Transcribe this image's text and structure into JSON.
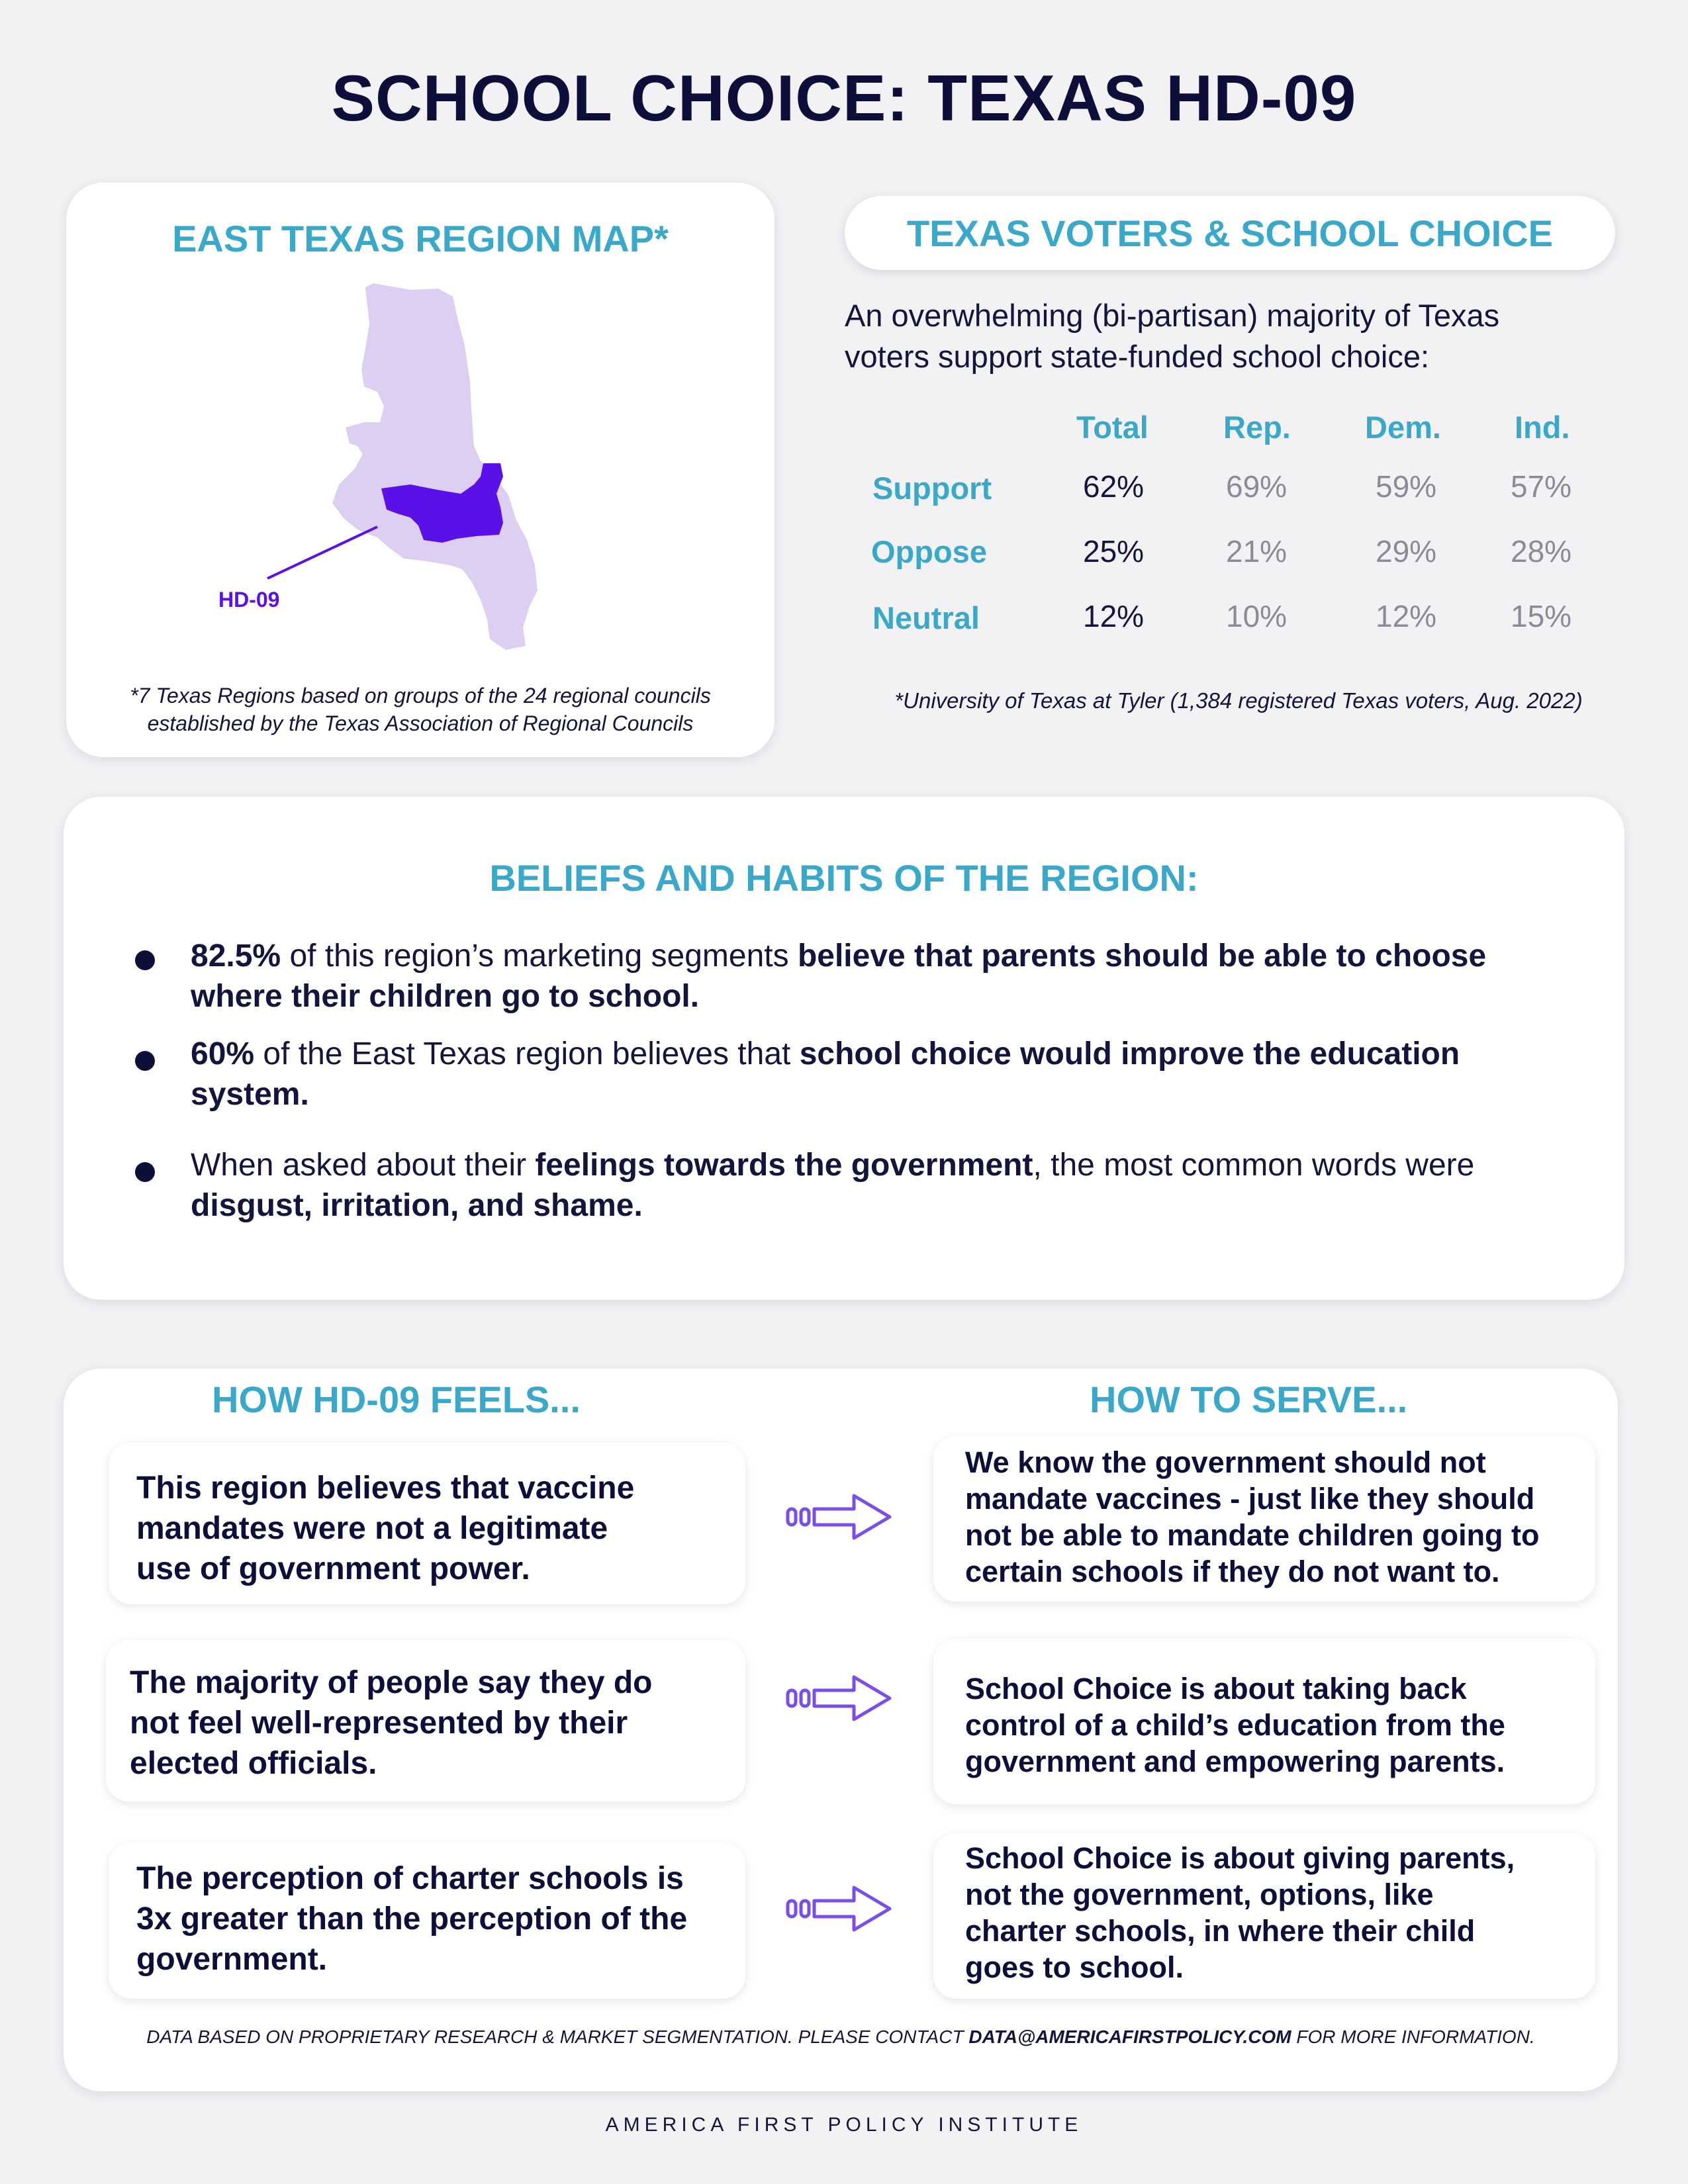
{
  "title": "SCHOOL CHOICE: TEXAS HD-09",
  "map": {
    "title": "EAST TEXAS REGION MAP*",
    "district_label": "HD-09",
    "footnote_line1": "*7 Texas Regions based on groups of the 24 regional councils",
    "footnote_line2": "established by the Texas Association of Regional Councils",
    "colors": {
      "region": "#dccff2",
      "district": "#5a10e6",
      "label": "#5a10e6"
    }
  },
  "voters": {
    "title": "TEXAS VOTERS & SCHOOL CHOICE",
    "intro_line1": "An overwhelming (bi-partisan) majority of Texas",
    "intro_line2": "voters support state-funded school choice:",
    "columns": [
      "Total",
      "Rep.",
      "Dem.",
      "Ind."
    ],
    "rows": [
      {
        "label": "Support",
        "values": [
          "62%",
          "69%",
          "59%",
          "57%"
        ]
      },
      {
        "label": "Oppose",
        "values": [
          "25%",
          "21%",
          "29%",
          "28%"
        ]
      },
      {
        "label": "Neutral",
        "values": [
          "12%",
          "10%",
          "12%",
          "15%"
        ]
      }
    ],
    "footnote": "*University of Texas at Tyler (1,384 registered Texas voters, Aug. 2022)"
  },
  "beliefs": {
    "title": "BELIEFS AND HABITS OF THE REGION:",
    "items": [
      {
        "bold1": "82.5%",
        "text1": " of this region’s marketing segments ",
        "bold2": "believe that parents should be able to choose where their children go to school."
      },
      {
        "bold1": "60%",
        "text1": " of the East Texas region believes that ",
        "bold2": "school choice would improve the education system."
      },
      {
        "text0": "When asked about their ",
        "bold1": "feelings towards the government",
        "text1": ", the most common words were ",
        "bold2": "disgust, irritation, and shame."
      }
    ]
  },
  "feels_serve": {
    "feels_title": "HOW HD-09 FEELS...",
    "serve_title": "HOW TO SERVE...",
    "pairs": [
      {
        "feel": [
          "This region believes that vaccine",
          "mandates were not a legitimate",
          "use of government power."
        ],
        "serve": [
          "We know the government should not",
          "mandate vaccines - just like they should",
          "not be able to mandate children going to",
          "certain schools if they do not want to."
        ]
      },
      {
        "feel": [
          "The majority of people say they do",
          "not feel well-represented by their",
          "elected officials."
        ],
        "serve": [
          "School Choice is about taking back",
          "control of a child’s education from the",
          "government and empowering parents."
        ]
      },
      {
        "feel": [
          "The perception of charter schools is",
          "3x greater than the perception of the",
          "government."
        ],
        "serve": [
          "School Choice is about giving parents,",
          "not the government, options, like",
          "charter schools, in where their child",
          "goes to school."
        ]
      }
    ],
    "arrow_icon": "arrow-right-icon",
    "footer_text1": "DATA BASED ON PROPRIETARY RESEARCH & MARKET SEGMENTATION. PLEASE CONTACT ",
    "footer_email": "DATA@AMERICAFIRSTPOLICY.COM",
    "footer_text2": " FOR MORE INFORMATION."
  },
  "organization": "AMERICA FIRST POLICY INSTITUTE",
  "theme": {
    "teal": "#3aa9c9",
    "navy": "#14143c",
    "purple": "#7a4fe8"
  }
}
